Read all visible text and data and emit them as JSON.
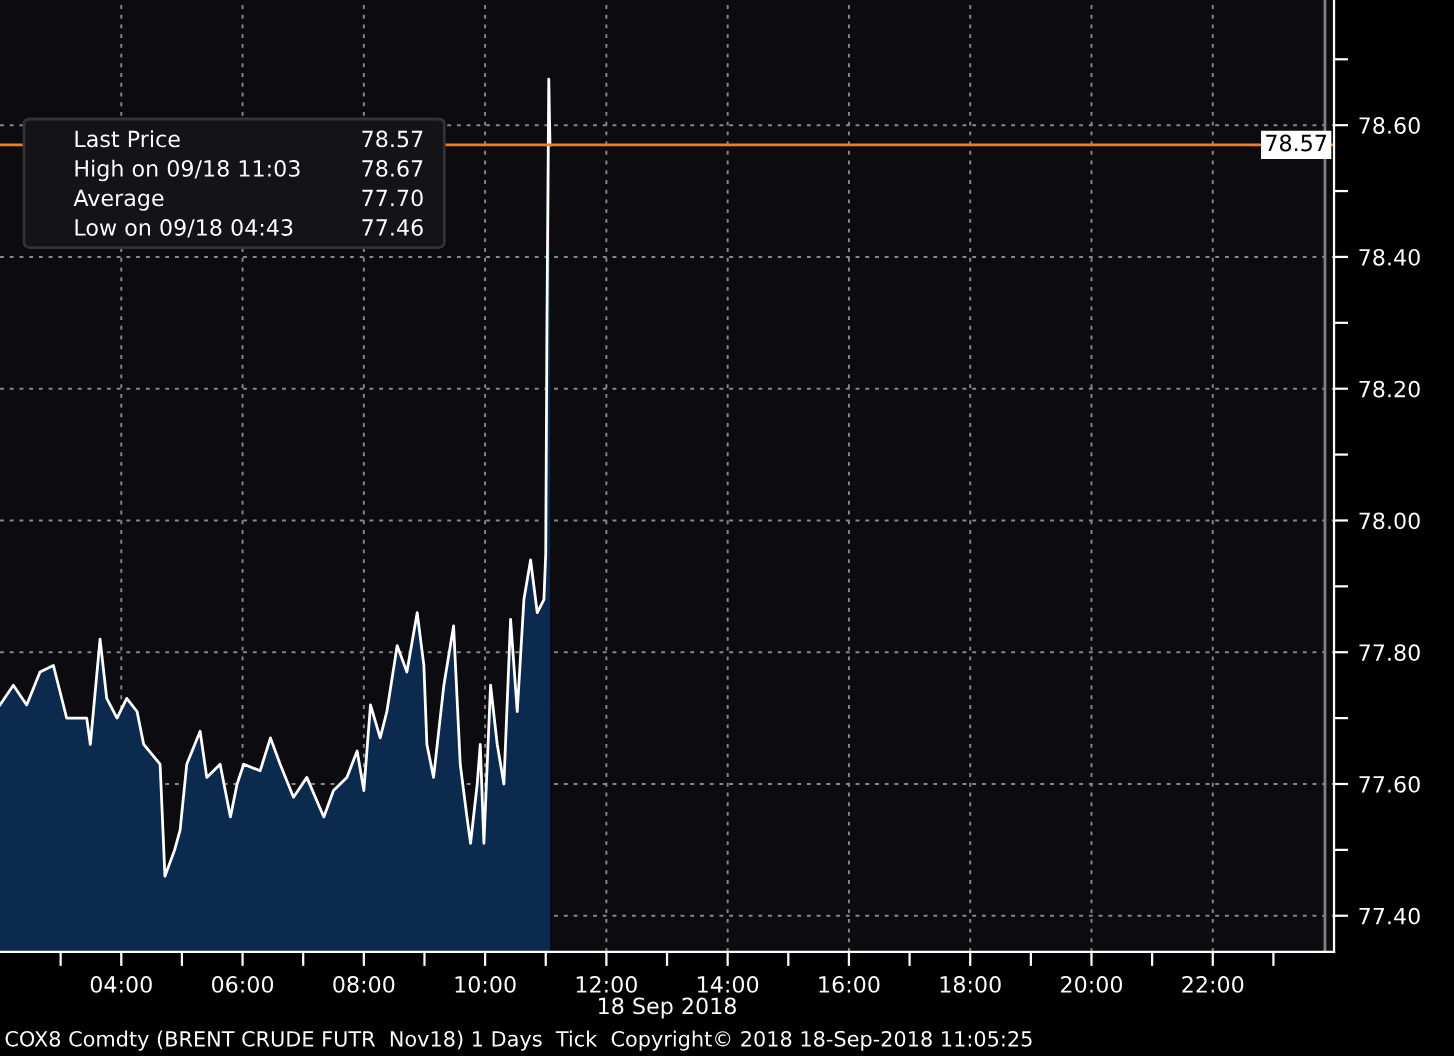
{
  "chart_data": {
    "type": "area",
    "xlabel": "18 Sep 2018",
    "x": [
      2.0,
      2.22,
      2.44,
      2.66,
      2.88,
      2.99,
      3.1,
      3.43,
      3.49,
      3.65,
      3.76,
      3.93,
      4.09,
      4.26,
      4.37,
      4.64,
      4.72,
      4.88,
      4.97,
      5.08,
      5.3,
      5.41,
      5.63,
      5.8,
      5.91,
      6.02,
      6.29,
      6.46,
      6.62,
      6.84,
      7.06,
      7.34,
      7.5,
      7.72,
      7.89,
      8.0,
      8.11,
      8.27,
      8.38,
      8.55,
      8.71,
      8.88,
      8.99,
      9.04,
      9.15,
      9.32,
      9.48,
      9.59,
      9.7,
      9.76,
      9.87,
      9.92,
      9.98,
      10.09,
      10.2,
      10.31,
      10.42,
      10.53,
      10.64,
      10.75,
      10.86,
      10.97,
      11.0,
      11.02,
      11.05,
      11.07
    ],
    "series": [
      {
        "color": "#0c2a4d",
        "values": [
          77.72,
          77.75,
          77.72,
          77.77,
          77.78,
          77.74,
          77.7,
          77.7,
          77.66,
          77.82,
          77.73,
          77.7,
          77.73,
          77.71,
          77.66,
          77.63,
          77.46,
          77.5,
          77.53,
          77.63,
          77.68,
          77.61,
          77.63,
          77.55,
          77.6,
          77.63,
          77.62,
          77.67,
          77.63,
          77.58,
          77.61,
          77.55,
          77.59,
          77.61,
          77.65,
          77.59,
          77.72,
          77.67,
          77.71,
          77.81,
          77.77,
          77.86,
          77.78,
          77.66,
          77.61,
          77.75,
          77.84,
          77.63,
          77.55,
          77.51,
          77.6,
          77.66,
          77.51,
          77.75,
          77.66,
          77.6,
          77.85,
          77.71,
          77.88,
          77.94,
          77.86,
          77.88,
          77.95,
          78.3,
          78.67,
          78.57
        ]
      }
    ],
    "xlim": [
      2,
      24
    ],
    "ylim": [
      77.345,
      78.79
    ],
    "xticks": [
      {
        "value": 3,
        "label": null
      },
      {
        "value": 4,
        "label": "04:00"
      },
      {
        "value": 5,
        "label": null
      },
      {
        "value": 6,
        "label": "06:00"
      },
      {
        "value": 7,
        "label": null
      },
      {
        "value": 8,
        "label": "08:00"
      },
      {
        "value": 9,
        "label": null
      },
      {
        "value": 10,
        "label": "10:00"
      },
      {
        "value": 11,
        "label": null
      },
      {
        "value": 12,
        "label": "12:00"
      },
      {
        "value": 13,
        "label": null
      },
      {
        "value": 14,
        "label": "14:00"
      },
      {
        "value": 15,
        "label": null
      },
      {
        "value": 16,
        "label": "16:00"
      },
      {
        "value": 17,
        "label": null
      },
      {
        "value": 18,
        "label": "18:00"
      },
      {
        "value": 19,
        "label": null
      },
      {
        "value": 20,
        "label": "20:00"
      },
      {
        "value": 21,
        "label": null
      },
      {
        "value": 22,
        "label": "22:00"
      },
      {
        "value": 23,
        "label": null
      }
    ],
    "yticks": [
      {
        "value": 77.4,
        "label": "77.40"
      },
      {
        "value": 77.5,
        "label": null
      },
      {
        "value": 77.6,
        "label": "77.60"
      },
      {
        "value": 77.7,
        "label": null
      },
      {
        "value": 77.8,
        "label": "77.80"
      },
      {
        "value": 77.9,
        "label": null
      },
      {
        "value": 78.0,
        "label": "78.00"
      },
      {
        "value": 78.1,
        "label": null
      },
      {
        "value": 78.2,
        "label": "78.20"
      },
      {
        "value": 78.3,
        "label": null
      },
      {
        "value": 78.4,
        "label": "78.40"
      },
      {
        "value": 78.5,
        "label": null
      },
      {
        "value": 78.6,
        "label": "78.60"
      },
      {
        "value": 78.7,
        "label": null
      }
    ],
    "grid": true,
    "ref_lines": [
      {
        "axis": "y",
        "value": 78.57,
        "label": "78.57",
        "color": "#f08020"
      },
      {
        "axis": "x",
        "value": 23.85,
        "color": "#808080"
      }
    ],
    "annotations": [
      "Last Price",
      "78.57",
      "High on 09/18 11:03",
      "78.67",
      "Average",
      "77.70",
      "Low on 09/18 04:43",
      "77.46",
      "COX8 Comdty (BRENT CRUDE FUTR  Nov18) 1 Days  Tick  Copyright© 2018 18-Sep-2018 11:05:25"
    ]
  }
}
